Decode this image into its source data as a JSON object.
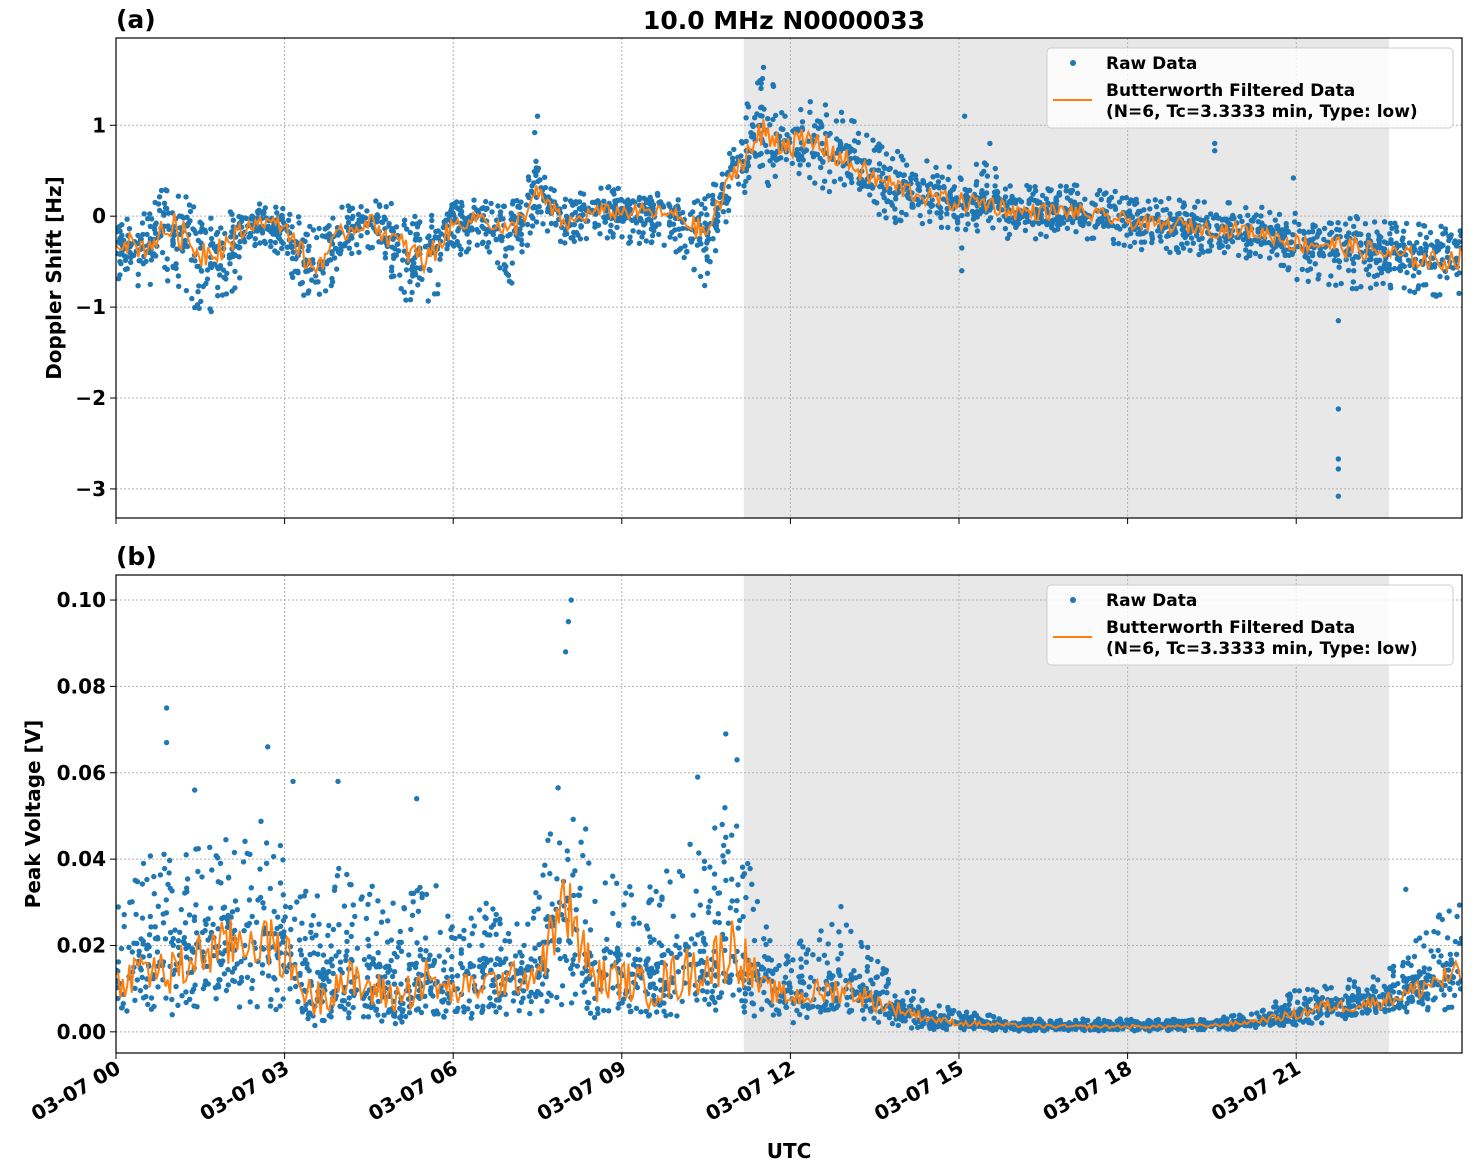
{
  "title": "10.0 MHz N0000033",
  "xlabel": "UTC",
  "x_tick_labels": [
    "03-07 00",
    "03-07 03",
    "03-07 06",
    "03-07 09",
    "03-07 12",
    "03-07 15",
    "03-07 18",
    "03-07 21"
  ],
  "legend": {
    "raw": "Raw Data",
    "filtered_line1": "Butterworth Filtered Data",
    "filtered_line2": "(N=6, Tc=3.3333 min, Type: low)"
  },
  "colors": {
    "raw": "#1f77b4",
    "filtered": "#ff7f0e",
    "shade": "#e8e8e8"
  },
  "chart_data": [
    {
      "type": "scatter+line",
      "panel_label": "(a)",
      "ylabel": "Doppler Shift [Hz]",
      "x_unit": "hours UTC on 03-07",
      "xlim": [
        0,
        23.95
      ],
      "ylim": [
        -3.32,
        1.96
      ],
      "yticks": [
        1,
        0,
        -1,
        -2,
        -3
      ],
      "ytick_labels": [
        "1",
        "0",
        "−1",
        "−2",
        "−3"
      ],
      "grid": true,
      "legend_placement": "upper-right",
      "shaded_span": [
        11.17,
        22.65
      ],
      "x": [
        0,
        0.5,
        1,
        1.5,
        2,
        2.5,
        3,
        3.5,
        4,
        4.5,
        5,
        5.5,
        6,
        6.5,
        7,
        7.5,
        8,
        8.5,
        9,
        9.5,
        10,
        10.5,
        11,
        11.5,
        12,
        12.5,
        13,
        13.5,
        14,
        14.5,
        15,
        15.5,
        16,
        16.5,
        17,
        17.5,
        18,
        18.5,
        19,
        19.5,
        20,
        20.5,
        21,
        21.5,
        22,
        22.5,
        23,
        23.5,
        24
      ],
      "filtered": [
        -0.25,
        -0.35,
        -0.1,
        -0.4,
        -0.3,
        -0.05,
        -0.1,
        -0.6,
        -0.2,
        -0.05,
        -0.3,
        -0.5,
        -0.1,
        0.0,
        -0.2,
        0.25,
        -0.1,
        0.05,
        0.05,
        0.05,
        0.0,
        -0.2,
        0.5,
        0.9,
        0.8,
        0.8,
        0.6,
        0.4,
        0.3,
        0.2,
        0.15,
        0.15,
        0.05,
        0.05,
        0.05,
        0.0,
        -0.05,
        -0.1,
        -0.1,
        -0.15,
        -0.15,
        -0.2,
        -0.3,
        -0.3,
        -0.35,
        -0.4,
        -0.45,
        -0.5,
        -0.45
      ],
      "raw_low": [
        -0.7,
        -0.8,
        -0.7,
        -1.1,
        -1.0,
        -0.3,
        -0.5,
        -1.1,
        -0.6,
        -0.4,
        -0.9,
        -1.2,
        -0.5,
        -0.3,
        -0.8,
        -0.1,
        -0.4,
        -0.2,
        -0.3,
        -0.3,
        -0.4,
        -0.8,
        0.2,
        0.3,
        0.3,
        0.3,
        0.2,
        0.0,
        -0.1,
        -0.1,
        -0.2,
        -0.2,
        -0.3,
        -0.3,
        -0.25,
        -0.3,
        -0.35,
        -0.4,
        -0.4,
        -0.45,
        -0.45,
        -0.5,
        -0.7,
        -0.75,
        -0.8,
        -0.8,
        -0.85,
        -0.9,
        -0.85
      ],
      "raw_high": [
        0.1,
        0.1,
        0.4,
        0.1,
        0.05,
        0.15,
        0.1,
        -0.1,
        0.1,
        0.2,
        0.15,
        0.0,
        0.15,
        0.2,
        0.1,
        0.7,
        0.2,
        0.35,
        0.3,
        0.3,
        0.2,
        0.2,
        0.9,
        1.7,
        1.3,
        1.45,
        1.1,
        0.9,
        0.7,
        0.6,
        0.55,
        0.6,
        0.35,
        0.35,
        0.35,
        0.3,
        0.25,
        0.2,
        0.2,
        0.15,
        0.15,
        0.1,
        0.05,
        0.05,
        0.0,
        0.0,
        -0.05,
        -0.1,
        -0.05
      ],
      "outliers": [
        [
          21.75,
          -3.08
        ],
        [
          21.75,
          -2.78
        ],
        [
          21.75,
          -2.67
        ],
        [
          21.75,
          -2.12
        ],
        [
          21.75,
          -1.15
        ],
        [
          15.05,
          -0.6
        ],
        [
          15.05,
          -0.35
        ],
        [
          15.1,
          1.1
        ],
        [
          19.55,
          0.8
        ],
        [
          19.55,
          0.72
        ],
        [
          7.5,
          1.1
        ],
        [
          7.45,
          0.92
        ],
        [
          20.95,
          0.42
        ],
        [
          15.55,
          0.8
        ]
      ]
    },
    {
      "type": "scatter+line",
      "panel_label": "(b)",
      "ylabel": "Peak Voltage [V]",
      "x_unit": "hours UTC on 03-07",
      "xlim": [
        0,
        23.95
      ],
      "ylim": [
        -0.0049,
        0.1058
      ],
      "yticks": [
        0.1,
        0.08,
        0.06,
        0.04,
        0.02,
        0.0
      ],
      "ytick_labels": [
        "0.10",
        "0.08",
        "0.06",
        "0.04",
        "0.02",
        "0.00"
      ],
      "grid": true,
      "legend_placement": "upper-right",
      "shaded_span": [
        11.17,
        22.65
      ],
      "x": [
        0,
        0.5,
        1,
        1.5,
        2,
        2.5,
        3,
        3.5,
        4,
        4.5,
        5,
        5.5,
        6,
        6.5,
        7,
        7.5,
        8,
        8.5,
        9,
        9.5,
        10,
        10.5,
        11,
        11.5,
        12,
        12.5,
        13,
        13.5,
        14,
        14.5,
        15,
        15.5,
        16,
        16.5,
        17,
        17.5,
        18,
        18.5,
        19,
        19.5,
        20,
        20.5,
        21,
        21.5,
        22,
        22.5,
        23,
        23.5,
        24
      ],
      "filtered": [
        0.011,
        0.015,
        0.013,
        0.018,
        0.02,
        0.022,
        0.018,
        0.007,
        0.012,
        0.01,
        0.008,
        0.012,
        0.009,
        0.011,
        0.012,
        0.014,
        0.03,
        0.012,
        0.012,
        0.01,
        0.013,
        0.015,
        0.02,
        0.01,
        0.008,
        0.009,
        0.01,
        0.007,
        0.005,
        0.003,
        0.002,
        0.0018,
        0.0015,
        0.0013,
        0.0012,
        0.0012,
        0.0012,
        0.0012,
        0.0013,
        0.0015,
        0.002,
        0.003,
        0.004,
        0.006,
        0.006,
        0.007,
        0.009,
        0.012,
        0.013
      ],
      "raw_low": [
        0.004,
        0.005,
        0.004,
        0.006,
        0.006,
        0.005,
        0.005,
        0.002,
        0.003,
        0.003,
        0.002,
        0.003,
        0.003,
        0.003,
        0.004,
        0.004,
        0.006,
        0.003,
        0.003,
        0.003,
        0.003,
        0.004,
        0.004,
        0.003,
        0.002,
        0.003,
        0.003,
        0.002,
        0.001,
        0.0005,
        0.0003,
        0.0003,
        0.0002,
        0.0002,
        0.0002,
        0.0002,
        0.0002,
        0.0002,
        0.0003,
        0.0004,
        0.0006,
        0.001,
        0.0015,
        0.002,
        0.003,
        0.003,
        0.004,
        0.005,
        0.005
      ],
      "raw_high": [
        0.03,
        0.04,
        0.045,
        0.045,
        0.048,
        0.05,
        0.045,
        0.03,
        0.04,
        0.035,
        0.03,
        0.04,
        0.025,
        0.03,
        0.03,
        0.035,
        0.065,
        0.04,
        0.035,
        0.035,
        0.045,
        0.045,
        0.06,
        0.025,
        0.02,
        0.025,
        0.025,
        0.018,
        0.012,
        0.007,
        0.005,
        0.004,
        0.003,
        0.003,
        0.003,
        0.003,
        0.003,
        0.003,
        0.003,
        0.003,
        0.004,
        0.006,
        0.01,
        0.013,
        0.013,
        0.014,
        0.02,
        0.027,
        0.03
      ],
      "outliers": [
        [
          0.9,
          0.075
        ],
        [
          0.9,
          0.067
        ],
        [
          1.4,
          0.056
        ],
        [
          2.7,
          0.066
        ],
        [
          3.15,
          0.058
        ],
        [
          3.95,
          0.058
        ],
        [
          5.35,
          0.054
        ],
        [
          8.1,
          0.1
        ],
        [
          8.05,
          0.095
        ],
        [
          8.0,
          0.088
        ],
        [
          10.35,
          0.059
        ],
        [
          10.85,
          0.069
        ],
        [
          11.05,
          0.063
        ],
        [
          12.9,
          0.029
        ],
        [
          22.95,
          0.033
        ]
      ]
    }
  ]
}
